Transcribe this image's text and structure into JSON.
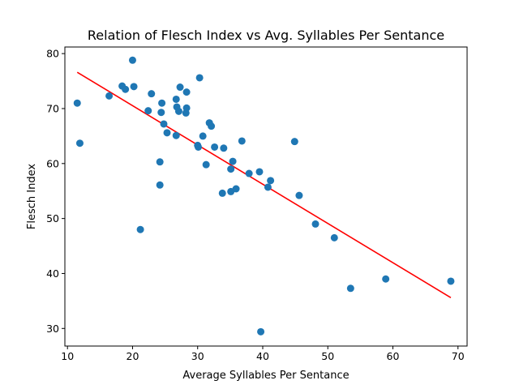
{
  "chart_data": {
    "type": "scatter",
    "title": "Relation of Flesch Index vs Avg. Syllables Per Sentance",
    "xlabel": "Average Syllables Per Sentance",
    "ylabel": "Flesch Index",
    "xlim": [
      9.6,
      71.4
    ],
    "ylim": [
      26.8,
      81.2
    ],
    "xticks": [
      10,
      20,
      30,
      40,
      50,
      60,
      70
    ],
    "yticks": [
      30,
      40,
      50,
      60,
      70,
      80
    ],
    "grid": false,
    "legend": "none",
    "point_color": "#1f77b4",
    "line_color": "#ff0000",
    "series": [
      {
        "type": "scatter",
        "points": [
          {
            "x": 11.5,
            "y": 71.0
          },
          {
            "x": 11.9,
            "y": 63.7
          },
          {
            "x": 16.4,
            "y": 72.3
          },
          {
            "x": 18.4,
            "y": 74.1
          },
          {
            "x": 18.9,
            "y": 73.5
          },
          {
            "x": 20.0,
            "y": 78.8
          },
          {
            "x": 20.2,
            "y": 74.0
          },
          {
            "x": 21.2,
            "y": 48.0
          },
          {
            "x": 22.4,
            "y": 69.6
          },
          {
            "x": 22.9,
            "y": 72.7
          },
          {
            "x": 24.2,
            "y": 60.3
          },
          {
            "x": 24.2,
            "y": 56.1
          },
          {
            "x": 24.4,
            "y": 69.3
          },
          {
            "x": 24.5,
            "y": 71.0
          },
          {
            "x": 24.8,
            "y": 67.2
          },
          {
            "x": 25.3,
            "y": 65.6
          },
          {
            "x": 26.7,
            "y": 65.1
          },
          {
            "x": 26.7,
            "y": 71.7
          },
          {
            "x": 26.8,
            "y": 70.3
          },
          {
            "x": 27.1,
            "y": 69.5
          },
          {
            "x": 27.3,
            "y": 73.9
          },
          {
            "x": 28.2,
            "y": 69.2
          },
          {
            "x": 28.3,
            "y": 70.1
          },
          {
            "x": 28.3,
            "y": 73.0
          },
          {
            "x": 30.0,
            "y": 63.3
          },
          {
            "x": 30.1,
            "y": 63.0
          },
          {
            "x": 30.3,
            "y": 75.6
          },
          {
            "x": 30.8,
            "y": 65.0
          },
          {
            "x": 31.3,
            "y": 59.8
          },
          {
            "x": 31.8,
            "y": 67.4
          },
          {
            "x": 32.1,
            "y": 66.8
          },
          {
            "x": 32.6,
            "y": 63.0
          },
          {
            "x": 33.8,
            "y": 54.6
          },
          {
            "x": 34.0,
            "y": 62.8
          },
          {
            "x": 35.1,
            "y": 59.0
          },
          {
            "x": 35.1,
            "y": 54.9
          },
          {
            "x": 35.4,
            "y": 60.4
          },
          {
            "x": 35.9,
            "y": 55.4
          },
          {
            "x": 36.8,
            "y": 64.1
          },
          {
            "x": 37.9,
            "y": 58.2
          },
          {
            "x": 39.5,
            "y": 58.5
          },
          {
            "x": 39.7,
            "y": 29.4
          },
          {
            "x": 40.8,
            "y": 55.7
          },
          {
            "x": 41.2,
            "y": 56.9
          },
          {
            "x": 44.9,
            "y": 64.0
          },
          {
            "x": 45.6,
            "y": 54.2
          },
          {
            "x": 48.1,
            "y": 49.0
          },
          {
            "x": 51.0,
            "y": 46.5
          },
          {
            "x": 53.5,
            "y": 37.3
          },
          {
            "x": 58.9,
            "y": 39.0
          },
          {
            "x": 68.9,
            "y": 38.6
          }
        ]
      },
      {
        "type": "line",
        "points": [
          {
            "x": 11.5,
            "y": 76.6
          },
          {
            "x": 68.9,
            "y": 35.6
          }
        ]
      }
    ]
  }
}
